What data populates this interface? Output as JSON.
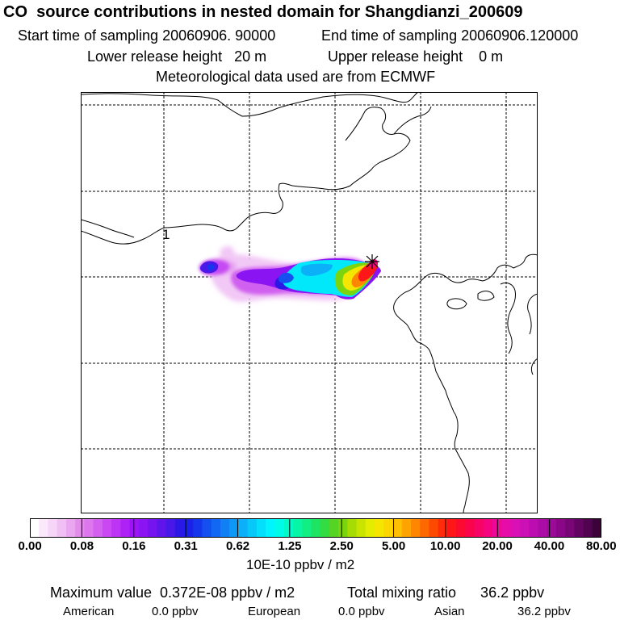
{
  "title": "CO  source contributions in nested domain for Shangdianzi_200609",
  "header": {
    "start_label": "Start time of sampling 20060906. 90000",
    "end_label": "End time of sampling 20060906.120000",
    "lower_label": "Lower release height   20 m",
    "upper_label": "Upper release height    0 m",
    "met_label": "Meteorological data used are from ECMWF"
  },
  "map": {
    "contour_label": "1",
    "receptor_marker": "+"
  },
  "colorbar": {
    "tick_labels": [
      "0.00",
      "0.08",
      "0.16",
      "0.31",
      "0.62",
      "1.25",
      "2.50",
      "5.00",
      "10.00",
      "20.00",
      "40.00",
      "80.00"
    ],
    "unit": "10E-10 ppbv / m2",
    "colors": [
      "#ffffff",
      "#fbe9fb",
      "#f6d5f8",
      "#f0bff4",
      "#eaa7f0",
      "#e38cec",
      "#dd77ee",
      "#d460f0",
      "#ca48f2",
      "#bd34f4",
      "#ae22f6",
      "#9c14f6",
      "#8a14f2",
      "#7514ee",
      "#5e14ea",
      "#4718e8",
      "#2c18e6",
      "#1b22e8",
      "#1636ec",
      "#1450f0",
      "#1268f2",
      "#1080f4",
      "#0e98f6",
      "#0cb0f8",
      "#08c8fa",
      "#04e0fc",
      "#00f4fe",
      "#00fce8",
      "#00fac8",
      "#06f6a6",
      "#10ee84",
      "#1ee464",
      "#34dc44",
      "#56d426",
      "#7cd40e",
      "#a4dc04",
      "#c8e400",
      "#e4ec00",
      "#f4e600",
      "#fcd600",
      "#fec000",
      "#fea400",
      "#fe8600",
      "#fe6800",
      "#fe4a00",
      "#fe2c08",
      "#fe1618",
      "#fc0a30",
      "#fa044c",
      "#f80466",
      "#f40480",
      "#ee0898",
      "#e60ca8",
      "#da10b4",
      "#cc10b6",
      "#bc0eb0",
      "#ac0ca6",
      "#9c0a98",
      "#8a0888",
      "#780676",
      "#640462",
      "#50034e",
      "#3c023a"
    ]
  },
  "footer": {
    "max_label": "Maximum value  0.372E-08 ppbv / m2",
    "total_label": "Total mixing ratio      36.2 ppbv",
    "american_label": "American",
    "american_value": "0.0 ppbv",
    "european_label": "European",
    "european_value": "0.0 ppbv",
    "asian_label": "Asian",
    "asian_value": "36.2 ppbv"
  }
}
